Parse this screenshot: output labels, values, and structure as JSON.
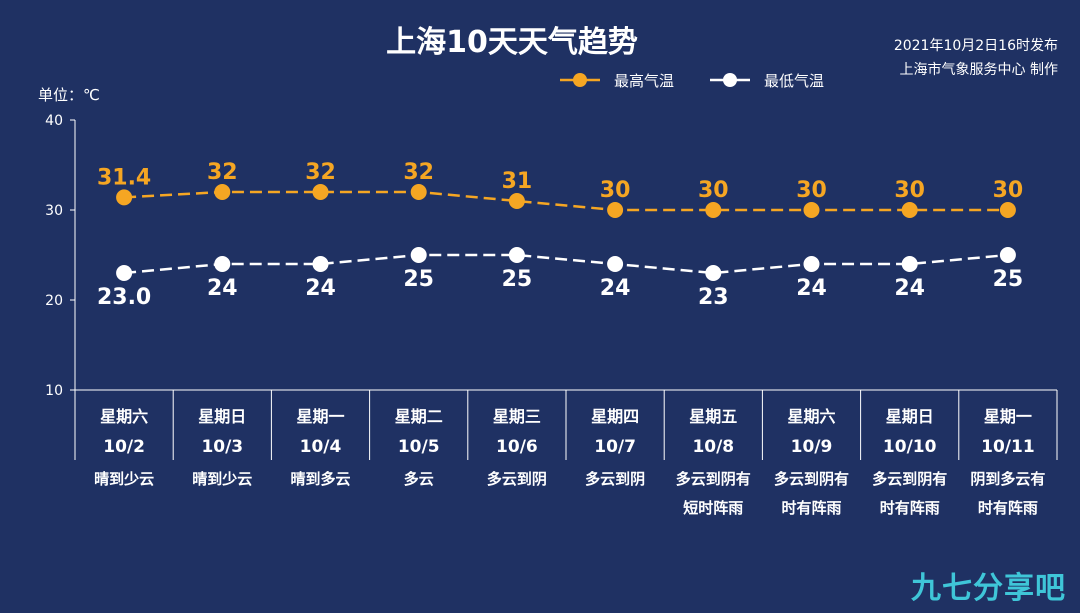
{
  "chart_data": {
    "type": "line",
    "title": "上海10天天气趋势",
    "publish_time": "2021年10月2日16时发布",
    "producer": "上海市气象服务中心 制作",
    "unit_label": "单位：℃",
    "ylim": [
      10,
      40
    ],
    "yticks": [
      "10",
      "20",
      "30",
      "40"
    ],
    "grid": false,
    "legend_position": "top-center",
    "categories": [
      {
        "weekday": "星期六",
        "date": "10/2",
        "weather": [
          "晴到少云"
        ]
      },
      {
        "weekday": "星期日",
        "date": "10/3",
        "weather": [
          "晴到少云"
        ]
      },
      {
        "weekday": "星期一",
        "date": "10/4",
        "weather": [
          "晴到多云"
        ]
      },
      {
        "weekday": "星期二",
        "date": "10/5",
        "weather": [
          "多云"
        ]
      },
      {
        "weekday": "星期三",
        "date": "10/6",
        "weather": [
          "多云到阴"
        ]
      },
      {
        "weekday": "星期四",
        "date": "10/7",
        "weather": [
          "多云到阴"
        ]
      },
      {
        "weekday": "星期五",
        "date": "10/8",
        "weather": [
          "多云到阴有",
          "短时阵雨"
        ]
      },
      {
        "weekday": "星期六",
        "date": "10/9",
        "weather": [
          "多云到阴有",
          "时有阵雨"
        ]
      },
      {
        "weekday": "星期日",
        "date": "10/10",
        "weather": [
          "多云到阴有",
          "时有阵雨"
        ]
      },
      {
        "weekday": "星期一",
        "date": "10/11",
        "weather": [
          "阴到多云有",
          "时有阵雨"
        ]
      }
    ],
    "series": [
      {
        "name": "最高气温",
        "color": "#f5a623",
        "values": [
          31.4,
          32,
          32,
          32,
          31,
          30,
          30,
          30,
          30,
          30
        ],
        "labels": [
          "31.4",
          "32",
          "32",
          "32",
          "31",
          "30",
          "30",
          "30",
          "30",
          "30"
        ]
      },
      {
        "name": "最低气温",
        "color": "#ffffff",
        "values": [
          23.0,
          24,
          24,
          25,
          25,
          24,
          23,
          24,
          24,
          25
        ],
        "labels": [
          "23.0",
          "24",
          "24",
          "25",
          "25",
          "24",
          "23",
          "24",
          "24",
          "25"
        ]
      }
    ]
  },
  "watermark": "九七分享吧",
  "colors": {
    "background": "#1f3163",
    "axis": "#ffffff",
    "high": "#f5a623",
    "low": "#ffffff"
  }
}
